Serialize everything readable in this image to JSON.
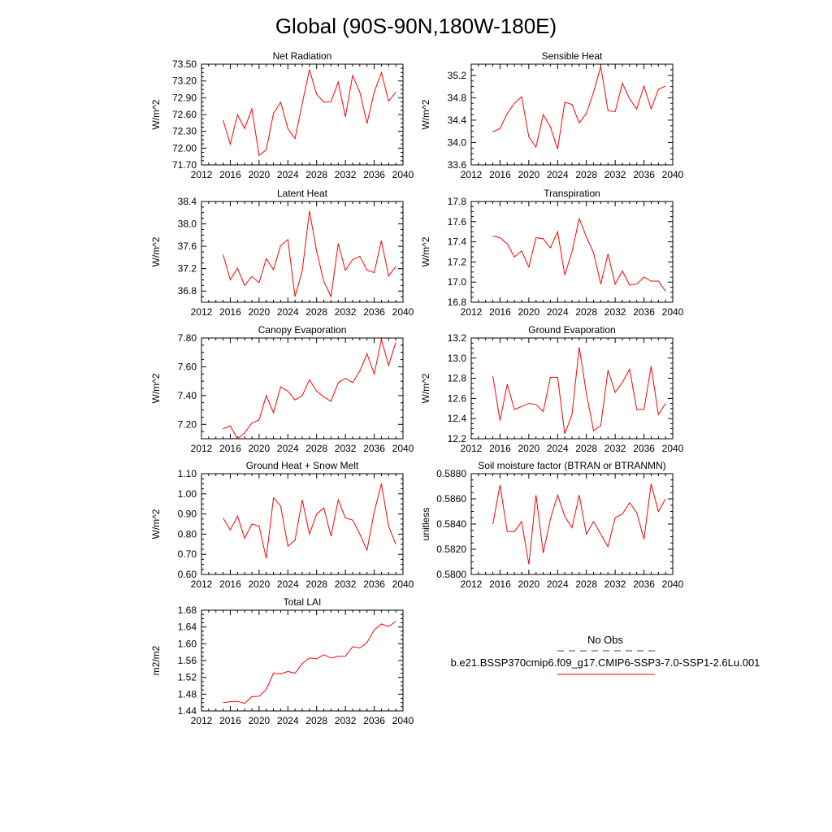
{
  "figure": {
    "title": "Global (90S-90N,180W-180E)"
  },
  "colors": {
    "model_line": "#ff0000",
    "obs_line": "#3b3b9c"
  },
  "legend": {
    "obs_label": "No Obs",
    "model_label": "b.e21.BSSP370cmip6.f09_g17.CMIP6-SSP3-7.0-SSP1-2.6Lu.001"
  },
  "chart_data": [
    {
      "type": "line",
      "title": "Net Radiation",
      "ylabel": "W/m^2",
      "xlim": [
        2012,
        2040
      ],
      "xticks": [
        2012,
        2016,
        2020,
        2024,
        2028,
        2032,
        2036,
        2040
      ],
      "ylim": [
        71.7,
        73.5
      ],
      "yticks": [
        71.7,
        72.0,
        72.3,
        72.6,
        72.9,
        73.2,
        73.5
      ],
      "ytick_labels": [
        "71.70",
        "72.00",
        "72.30",
        "72.60",
        "72.90",
        "73.20",
        "73.50"
      ],
      "series": [
        {
          "x": [
            2015,
            2016,
            2017,
            2018,
            2019,
            2020,
            2021,
            2022,
            2023,
            2024,
            2025,
            2026,
            2027,
            2028,
            2029,
            2030,
            2031,
            2032,
            2033,
            2034,
            2035,
            2036,
            2037,
            2038,
            2039
          ],
          "values": [
            72.5,
            72.07,
            72.6,
            72.35,
            72.7,
            71.87,
            71.97,
            72.62,
            72.82,
            72.35,
            72.17,
            72.8,
            73.4,
            72.96,
            72.82,
            72.83,
            73.18,
            72.56,
            73.3,
            73.0,
            72.44,
            73.0,
            73.35,
            72.84,
            73.0
          ]
        }
      ]
    },
    {
      "type": "line",
      "title": "Sensible Heat",
      "ylabel": "W/m^2",
      "xlim": [
        2012,
        2040
      ],
      "xticks": [
        2012,
        2016,
        2020,
        2024,
        2028,
        2032,
        2036,
        2040
      ],
      "ylim": [
        33.6,
        35.4
      ],
      "yticks": [
        33.6,
        34.0,
        34.4,
        34.8,
        35.2
      ],
      "ytick_labels": [
        "33.6",
        "34.0",
        "34.4",
        "34.8",
        "35.2"
      ],
      "series": [
        {
          "x": [
            2015,
            2016,
            2017,
            2018,
            2019,
            2020,
            2021,
            2022,
            2023,
            2024,
            2025,
            2026,
            2027,
            2028,
            2029,
            2030,
            2031,
            2032,
            2033,
            2034,
            2035,
            2036,
            2037,
            2038,
            2039
          ],
          "values": [
            34.19,
            34.25,
            34.52,
            34.7,
            34.82,
            34.1,
            33.92,
            34.5,
            34.28,
            33.88,
            34.72,
            34.68,
            34.35,
            34.52,
            34.9,
            35.36,
            34.57,
            34.55,
            35.06,
            34.78,
            34.6,
            35.01,
            34.6,
            34.95,
            35.01
          ]
        }
      ]
    },
    {
      "type": "line",
      "title": "Latent Heat",
      "ylabel": "W/m^2",
      "xlim": [
        2012,
        2040
      ],
      "xticks": [
        2012,
        2016,
        2020,
        2024,
        2028,
        2032,
        2036,
        2040
      ],
      "ylim": [
        36.6,
        38.4
      ],
      "yticks": [
        36.8,
        37.2,
        37.6,
        38.0,
        38.4
      ],
      "ytick_labels": [
        "36.8",
        "37.2",
        "37.6",
        "38.0",
        "38.4"
      ],
      "series": [
        {
          "x": [
            2015,
            2016,
            2017,
            2018,
            2019,
            2020,
            2021,
            2022,
            2023,
            2024,
            2025,
            2026,
            2027,
            2028,
            2029,
            2030,
            2031,
            2032,
            2033,
            2034,
            2035,
            2036,
            2037,
            2038,
            2039
          ],
          "values": [
            37.45,
            37.0,
            37.21,
            36.9,
            37.06,
            36.95,
            37.38,
            37.18,
            37.61,
            37.72,
            36.7,
            37.16,
            38.23,
            37.51,
            36.97,
            36.7,
            37.65,
            37.17,
            37.36,
            37.42,
            37.17,
            37.13,
            37.7,
            37.07,
            37.24
          ]
        }
      ]
    },
    {
      "type": "line",
      "title": "Transpiration",
      "ylabel": "W/m^2",
      "xlim": [
        2012,
        2040
      ],
      "xticks": [
        2012,
        2016,
        2020,
        2024,
        2028,
        2032,
        2036,
        2040
      ],
      "ylim": [
        16.8,
        17.8
      ],
      "yticks": [
        16.8,
        17.0,
        17.2,
        17.4,
        17.6,
        17.8
      ],
      "ytick_labels": [
        "16.8",
        "17.0",
        "17.2",
        "17.4",
        "17.6",
        "17.8"
      ],
      "series": [
        {
          "x": [
            2015,
            2016,
            2017,
            2018,
            2019,
            2020,
            2021,
            2022,
            2023,
            2024,
            2025,
            2026,
            2027,
            2028,
            2029,
            2030,
            2031,
            2032,
            2033,
            2034,
            2035,
            2036,
            2037,
            2038,
            2039
          ],
          "values": [
            17.46,
            17.44,
            17.38,
            17.25,
            17.31,
            17.15,
            17.44,
            17.43,
            17.34,
            17.5,
            17.07,
            17.3,
            17.63,
            17.45,
            17.29,
            16.98,
            17.28,
            16.98,
            17.11,
            16.97,
            16.98,
            17.05,
            17.01,
            17.01,
            16.91
          ]
        }
      ]
    },
    {
      "type": "line",
      "title": "Canopy Evaporation",
      "ylabel": "W/m^2",
      "xlim": [
        2012,
        2040
      ],
      "xticks": [
        2012,
        2016,
        2020,
        2024,
        2028,
        2032,
        2036,
        2040
      ],
      "ylim": [
        7.1,
        7.8
      ],
      "yticks": [
        7.2,
        7.4,
        7.6,
        7.8
      ],
      "ytick_labels": [
        "7.20",
        "7.40",
        "7.60",
        "7.80"
      ],
      "series": [
        {
          "x": [
            2015,
            2016,
            2017,
            2018,
            2019,
            2020,
            2021,
            2022,
            2023,
            2024,
            2025,
            2026,
            2027,
            2028,
            2029,
            2030,
            2031,
            2032,
            2033,
            2034,
            2035,
            2036,
            2037,
            2038,
            2039
          ],
          "values": [
            7.17,
            7.19,
            7.1,
            7.14,
            7.21,
            7.23,
            7.4,
            7.28,
            7.46,
            7.43,
            7.37,
            7.4,
            7.51,
            7.43,
            7.39,
            7.36,
            7.49,
            7.52,
            7.49,
            7.57,
            7.69,
            7.55,
            7.79,
            7.61,
            7.77
          ]
        }
      ]
    },
    {
      "type": "line",
      "title": "Ground Evaporation",
      "ylabel": "W/m^2",
      "xlim": [
        2012,
        2040
      ],
      "xticks": [
        2012,
        2016,
        2020,
        2024,
        2028,
        2032,
        2036,
        2040
      ],
      "ylim": [
        12.2,
        13.2
      ],
      "yticks": [
        12.2,
        12.4,
        12.6,
        12.8,
        13.0,
        13.2
      ],
      "ytick_labels": [
        "12.2",
        "12.4",
        "12.6",
        "12.8",
        "13.0",
        "13.2"
      ],
      "series": [
        {
          "x": [
            2015,
            2016,
            2017,
            2018,
            2019,
            2020,
            2021,
            2022,
            2023,
            2024,
            2025,
            2026,
            2027,
            2028,
            2029,
            2030,
            2031,
            2032,
            2033,
            2034,
            2035,
            2036,
            2037,
            2038,
            2039
          ],
          "values": [
            12.82,
            12.38,
            12.74,
            12.49,
            12.52,
            12.55,
            12.54,
            12.47,
            12.81,
            12.81,
            12.25,
            12.44,
            13.11,
            12.65,
            12.28,
            12.33,
            12.88,
            12.66,
            12.76,
            12.89,
            12.49,
            12.49,
            12.92,
            12.44,
            12.55
          ]
        }
      ]
    },
    {
      "type": "line",
      "title": "Ground Heat + Snow Melt",
      "ylabel": "W/m^2",
      "xlim": [
        2012,
        2040
      ],
      "xticks": [
        2012,
        2016,
        2020,
        2024,
        2028,
        2032,
        2036,
        2040
      ],
      "ylim": [
        0.6,
        1.1
      ],
      "yticks": [
        0.6,
        0.7,
        0.8,
        0.9,
        1.0,
        1.1
      ],
      "ytick_labels": [
        "0.60",
        "0.70",
        "0.80",
        "0.90",
        "1.00",
        "1.10"
      ],
      "series": [
        {
          "x": [
            2015,
            2016,
            2017,
            2018,
            2019,
            2020,
            2021,
            2022,
            2023,
            2024,
            2025,
            2026,
            2027,
            2028,
            2029,
            2030,
            2031,
            2032,
            2033,
            2034,
            2035,
            2036,
            2037,
            2038,
            2039
          ],
          "values": [
            0.88,
            0.82,
            0.89,
            0.78,
            0.85,
            0.84,
            0.68,
            0.98,
            0.94,
            0.74,
            0.77,
            0.97,
            0.8,
            0.9,
            0.93,
            0.79,
            0.97,
            0.88,
            0.87,
            0.8,
            0.72,
            0.91,
            1.05,
            0.84,
            0.75
          ]
        }
      ]
    },
    {
      "type": "line",
      "title": "Soil moisture factor (BTRAN or BTRANMN)",
      "ylabel": "unitless",
      "xlim": [
        2012,
        2040
      ],
      "xticks": [
        2012,
        2016,
        2020,
        2024,
        2028,
        2032,
        2036,
        2040
      ],
      "ylim": [
        0.58,
        0.588
      ],
      "yticks": [
        0.58,
        0.582,
        0.584,
        0.586,
        0.588
      ],
      "ytick_labels": [
        "0.5800",
        "0.5820",
        "0.5840",
        "0.5860",
        "0.5880"
      ],
      "series": [
        {
          "x": [
            2015,
            2016,
            2017,
            2018,
            2019,
            2020,
            2021,
            2022,
            2023,
            2024,
            2025,
            2026,
            2027,
            2028,
            2029,
            2030,
            2031,
            2032,
            2033,
            2034,
            2035,
            2036,
            2037,
            2038,
            2039
          ],
          "values": [
            0.584,
            0.5871,
            0.5834,
            0.5834,
            0.5842,
            0.5808,
            0.5863,
            0.5817,
            0.5844,
            0.5863,
            0.5846,
            0.5837,
            0.5863,
            0.5832,
            0.5842,
            0.5832,
            0.5822,
            0.5845,
            0.5848,
            0.5857,
            0.5849,
            0.5828,
            0.5872,
            0.585,
            0.586
          ]
        }
      ]
    },
    {
      "type": "line",
      "title": "Total LAI",
      "ylabel": "m2/m2",
      "xlim": [
        2012,
        2040
      ],
      "xticks": [
        2012,
        2016,
        2020,
        2024,
        2028,
        2032,
        2036,
        2040
      ],
      "ylim": [
        1.44,
        1.68
      ],
      "yticks": [
        1.44,
        1.48,
        1.52,
        1.56,
        1.6,
        1.64,
        1.68
      ],
      "ytick_labels": [
        "1.44",
        "1.48",
        "1.52",
        "1.56",
        "1.60",
        "1.64",
        "1.68"
      ],
      "series": [
        {
          "x": [
            2015,
            2016,
            2017,
            2018,
            2019,
            2020,
            2021,
            2022,
            2023,
            2024,
            2025,
            2026,
            2027,
            2028,
            2029,
            2030,
            2031,
            2032,
            2033,
            2034,
            2035,
            2036,
            2037,
            2038,
            2039
          ],
          "values": [
            1.46,
            1.462,
            1.463,
            1.458,
            1.474,
            1.475,
            1.491,
            1.53,
            1.528,
            1.534,
            1.53,
            1.553,
            1.566,
            1.564,
            1.574,
            1.566,
            1.57,
            1.57,
            1.593,
            1.59,
            1.603,
            1.633,
            1.647,
            1.641,
            1.653
          ]
        }
      ]
    }
  ]
}
